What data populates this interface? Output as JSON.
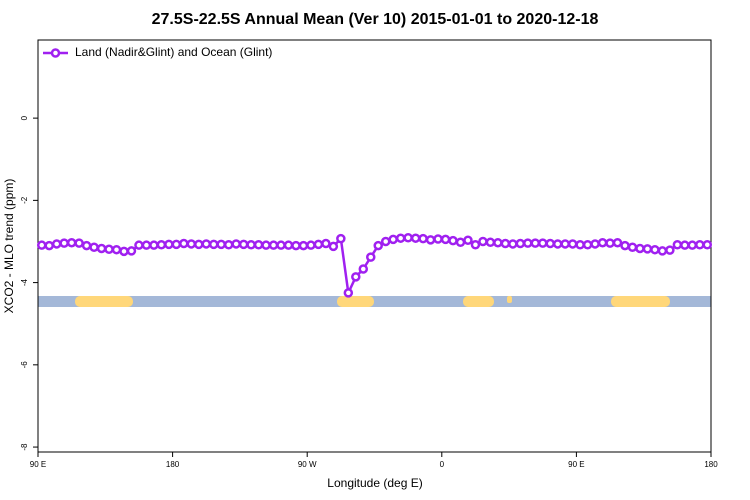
{
  "chart_data": {
    "type": "line",
    "title": "27.5S-22.5S Annual Mean (Ver 10)   2015-01-01 to 2020-12-18",
    "x_label": "Longitude (deg E)",
    "y_label": "XCO2 - MLO trend (ppm)",
    "xlim": [
      90,
      540
    ],
    "ylim": [
      -8.12,
      1.9
    ],
    "xticks": [
      {
        "value": 90,
        "label": "90 E"
      },
      180,
      {
        "value": 270,
        "label": "90 W"
      },
      {
        "value": 360,
        "label": "0"
      },
      {
        "value": 450,
        "label": "90 E"
      },
      {
        "value": 540,
        "label": "180"
      }
    ],
    "yticks": [
      0,
      -2,
      -4,
      -6,
      -8
    ],
    "legend": "upper left",
    "x": [
      92.5,
      97.5,
      102.5,
      107.5,
      112.5,
      117.5,
      122.5,
      127.5,
      132.5,
      137.5,
      142.5,
      147.5,
      152.5,
      157.5,
      162.5,
      167.5,
      172.5,
      177.5,
      182.5,
      187.5,
      192.5,
      197.5,
      202.5,
      207.5,
      212.5,
      217.5,
      222.5,
      227.5,
      232.5,
      237.5,
      242.5,
      247.5,
      252.5,
      257.5,
      262.5,
      267.5,
      272.5,
      277.5,
      282.5,
      287.5,
      292.5,
      297.5,
      302.5,
      307.5,
      312.5,
      317.5,
      322.5,
      327.5,
      332.5,
      337.5,
      342.5,
      347.5,
      352.5,
      357.5,
      362.5,
      367.5,
      372.5,
      377.5,
      382.5,
      387.5,
      392.5,
      397.5,
      402.5,
      407.5,
      412.5,
      417.5,
      422.5,
      427.5,
      432.5,
      437.5,
      442.5,
      447.5,
      452.5,
      457.5,
      462.5,
      467.5,
      472.5,
      477.5,
      482.5,
      487.5,
      492.5,
      497.5,
      502.5,
      507.5,
      512.5,
      517.5,
      522.5,
      527.5,
      532.5,
      537.5
    ],
    "series": [
      {
        "name": "Land (Nadir&Glint) and Ocean (Glint)",
        "color": "#a020f0",
        "values": [
          -3.09,
          -3.1,
          -3.06,
          -3.04,
          -3.03,
          -3.04,
          -3.1,
          -3.14,
          -3.17,
          -3.19,
          -3.2,
          -3.24,
          -3.23,
          -3.09,
          -3.09,
          -3.09,
          -3.08,
          -3.07,
          -3.07,
          -3.05,
          -3.06,
          -3.07,
          -3.06,
          -3.07,
          -3.07,
          -3.08,
          -3.06,
          -3.07,
          -3.08,
          -3.08,
          -3.09,
          -3.09,
          -3.09,
          -3.09,
          -3.1,
          -3.1,
          -3.09,
          -3.07,
          -3.05,
          -3.12,
          -2.93,
          -4.25,
          -3.86,
          -3.67,
          -3.38,
          -3.1,
          -3.0,
          -2.95,
          -2.92,
          -2.91,
          -2.92,
          -2.93,
          -2.96,
          -2.94,
          -2.95,
          -2.98,
          -3.02,
          -2.97,
          -3.08,
          -3.0,
          -3.02,
          -3.03,
          -3.05,
          -3.06,
          -3.05,
          -3.04,
          -3.04,
          -3.04,
          -3.05,
          -3.06,
          -3.06,
          -3.06,
          -3.08,
          -3.08,
          -3.06,
          -3.03,
          -3.04,
          -3.03,
          -3.1,
          -3.14,
          -3.17,
          -3.18,
          -3.2,
          -3.23,
          -3.21,
          -3.08,
          -3.09,
          -3.09,
          -3.08,
          -3.08
        ]
      }
    ]
  }
}
